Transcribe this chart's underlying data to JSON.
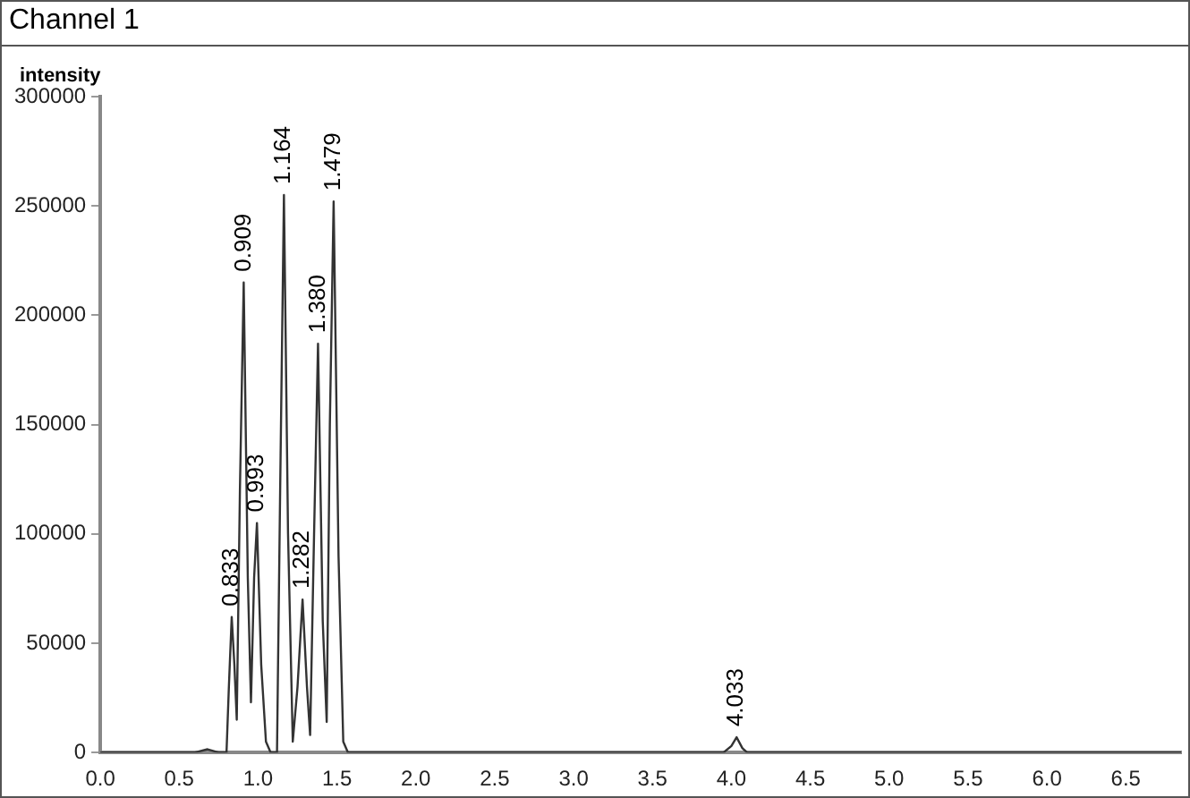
{
  "chart_data": {
    "type": "line",
    "title": "Channel 1",
    "ylabel": "intensity",
    "series": [
      {
        "color": "#333333",
        "x": [
          0,
          0.6,
          0.68,
          0.75,
          0.8,
          0.815,
          0.833,
          0.85,
          0.865,
          0.885,
          0.909,
          0.935,
          0.955,
          0.975,
          0.993,
          1.02,
          1.05,
          1.08,
          1.12,
          1.14,
          1.164,
          1.19,
          1.22,
          1.25,
          1.282,
          1.31,
          1.33,
          1.355,
          1.38,
          1.41,
          1.435,
          1.455,
          1.479,
          1.51,
          1.54,
          1.57,
          3.95,
          4.0,
          4.033,
          4.07,
          4.1,
          6.85
        ],
        "values": [
          0,
          0,
          1500,
          0,
          0,
          30000,
          62000,
          40000,
          15000,
          120000,
          215000,
          80000,
          23000,
          80000,
          105000,
          40000,
          5000,
          0,
          0,
          120000,
          255000,
          100000,
          5000,
          30000,
          70000,
          30000,
          8000,
          100000,
          187000,
          60000,
          14000,
          150000,
          252000,
          90000,
          5000,
          0,
          0,
          3000,
          7000,
          2000,
          0,
          0
        ]
      }
    ],
    "xlim": [
      0,
      6.85
    ],
    "xticks": [
      {
        "value": 0,
        "label": "0.0"
      },
      0.5,
      {
        "value": 1,
        "label": "1.0"
      },
      1.5,
      {
        "value": 2,
        "label": "2.0"
      },
      2.5,
      {
        "value": 3,
        "label": "3.0"
      },
      3.5,
      {
        "value": 4,
        "label": "4.0"
      },
      4.5,
      {
        "value": 5,
        "label": "5.0"
      },
      5.5,
      {
        "value": 6,
        "label": "6.0"
      },
      6.5
    ],
    "ylim": [
      0,
      300000
    ],
    "yticks": [
      0,
      50000,
      100000,
      150000,
      200000,
      250000,
      300000
    ],
    "grid": false,
    "legend": false,
    "marker": "none",
    "line_style": "solid",
    "annotations": [
      {
        "text": "0.833",
        "x": 0.833,
        "y": 62000
      },
      {
        "text": "0.909",
        "x": 0.909,
        "y": 215000
      },
      {
        "text": "0.993",
        "x": 0.993,
        "y": 105000
      },
      {
        "text": "1.164",
        "x": 1.164,
        "y": 255000
      },
      {
        "text": "1.282",
        "x": 1.282,
        "y": 70000
      },
      {
        "text": "1.380",
        "x": 1.38,
        "y": 187000
      },
      {
        "text": "1.479",
        "x": 1.479,
        "y": 252000
      },
      {
        "text": "4.033",
        "x": 4.033,
        "y": 7000
      }
    ]
  }
}
